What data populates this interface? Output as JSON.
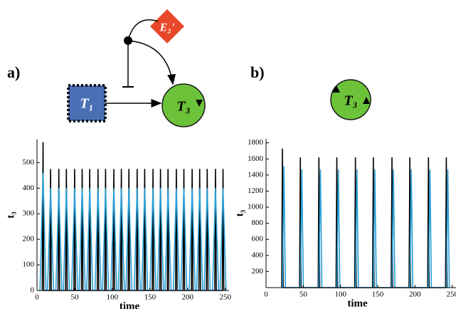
{
  "diagram": {
    "nodes": [
      {
        "label": "T₁"
      },
      {
        "label": "T₃"
      },
      {
        "label": "E₂'"
      },
      {
        "label": "T₃"
      }
    ]
  },
  "chart_data": [
    {
      "type": "line",
      "panel_label": "a)",
      "xlabel": "time",
      "ylabel": "t₃",
      "xlim": [
        0,
        255
      ],
      "xticks": [
        0,
        50,
        100,
        150,
        200,
        250
      ],
      "ylim": [
        0,
        590
      ],
      "yticks": [
        0,
        100,
        200,
        300,
        400,
        500
      ],
      "series": [
        {
          "color": "#000000",
          "x": [
            7,
            8,
            9,
            17,
            18,
            19,
            28,
            29,
            30,
            38,
            39,
            40,
            49,
            50,
            51,
            59,
            60,
            61,
            69,
            70,
            71,
            80,
            81,
            82,
            90,
            91,
            92,
            101,
            102,
            103,
            111,
            112,
            113,
            121,
            122,
            123,
            132,
            133,
            134,
            142,
            143,
            144,
            153,
            154,
            155,
            163,
            164,
            165,
            173,
            174,
            175,
            184,
            185,
            186,
            194,
            195,
            196,
            205,
            206,
            207,
            215,
            216,
            217,
            225,
            226,
            227,
            236,
            237,
            238,
            246,
            247,
            248
          ],
          "values": [
            0,
            580,
            0,
            0,
            475,
            0,
            0,
            475,
            0,
            0,
            475,
            0,
            0,
            475,
            0,
            0,
            475,
            0,
            0,
            475,
            0,
            0,
            475,
            0,
            0,
            475,
            0,
            0,
            475,
            0,
            0,
            475,
            0,
            0,
            475,
            0,
            0,
            475,
            0,
            0,
            475,
            0,
            0,
            475,
            0,
            0,
            475,
            0,
            0,
            475,
            0,
            0,
            475,
            0,
            0,
            475,
            0,
            0,
            475,
            0,
            0,
            475,
            0,
            0,
            475,
            0,
            0,
            475,
            0,
            0,
            475,
            0
          ]
        },
        {
          "color": "#2a9fd6",
          "x": [
            4,
            8,
            12,
            14,
            18,
            22,
            25,
            29,
            33,
            35,
            39,
            43,
            46,
            50,
            54,
            56,
            60,
            64,
            66,
            70,
            74,
            77,
            81,
            85,
            87,
            91,
            95,
            98,
            102,
            106,
            108,
            112,
            116,
            118,
            122,
            126,
            129,
            133,
            137,
            139,
            143,
            147,
            150,
            154,
            158,
            160,
            164,
            168,
            170,
            174,
            178,
            181,
            185,
            189,
            191,
            195,
            199,
            202,
            206,
            210,
            212,
            216,
            220,
            222,
            226,
            230,
            233,
            237,
            241,
            243,
            247,
            251
          ],
          "values": [
            0,
            460,
            0,
            0,
            400,
            0,
            0,
            400,
            0,
            0,
            400,
            0,
            0,
            400,
            0,
            0,
            400,
            0,
            0,
            400,
            0,
            0,
            400,
            0,
            0,
            400,
            0,
            0,
            400,
            0,
            0,
            400,
            0,
            0,
            400,
            0,
            0,
            400,
            0,
            0,
            400,
            0,
            0,
            400,
            0,
            0,
            400,
            0,
            0,
            400,
            0,
            0,
            400,
            0,
            0,
            400,
            0,
            0,
            400,
            0,
            0,
            400,
            0,
            0,
            400,
            0,
            0,
            400,
            0,
            0,
            400,
            0
          ]
        }
      ]
    },
    {
      "type": "line",
      "panel_label": "b)",
      "xlabel": "time",
      "ylabel": "t₃",
      "xlim": [
        0,
        255
      ],
      "xticks": [
        0,
        50,
        100,
        150,
        200,
        250
      ],
      "ylim": [
        0,
        1850
      ],
      "yticks": [
        200,
        400,
        600,
        800,
        1000,
        1200,
        1400,
        1600,
        1800
      ],
      "series": [
        {
          "color": "#000000",
          "x": [
            21,
            22,
            23,
            45,
            46,
            47,
            70,
            71,
            72,
            94,
            95,
            96,
            119,
            120,
            121,
            143,
            144,
            145,
            168,
            169,
            170,
            192,
            193,
            194,
            217,
            218,
            219,
            241,
            242,
            243
          ],
          "values": [
            0,
            1730,
            0,
            0,
            1620,
            0,
            0,
            1620,
            0,
            0,
            1620,
            0,
            0,
            1620,
            0,
            0,
            1620,
            0,
            0,
            1620,
            0,
            0,
            1620,
            0,
            0,
            1620,
            0,
            0,
            1620,
            0
          ]
        },
        {
          "color": "#2a9fd6",
          "x": [
            22,
            24,
            26,
            46,
            48,
            50,
            71,
            73,
            75,
            95,
            97,
            99,
            120,
            122,
            124,
            144,
            146,
            148,
            169,
            171,
            173,
            193,
            195,
            197,
            218,
            220,
            222,
            242,
            244,
            246
          ],
          "values": [
            0,
            1510,
            0,
            0,
            1470,
            0,
            0,
            1470,
            0,
            0,
            1470,
            0,
            0,
            1470,
            0,
            0,
            1470,
            0,
            0,
            1470,
            0,
            0,
            1470,
            0,
            0,
            1470,
            0,
            0,
            1470,
            0
          ]
        }
      ]
    }
  ]
}
